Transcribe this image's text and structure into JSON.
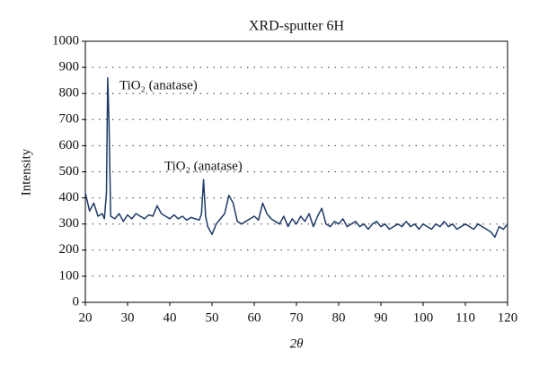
{
  "chart_data": {
    "type": "line",
    "title": "XRD-sputter 6H",
    "x_label": "2θ",
    "y_label": "Intensity",
    "annotations": [
      "TiO₂ (anatase)",
      "TiO₂ (anatase)"
    ],
    "x": [
      20,
      21,
      22,
      23,
      24,
      24.5,
      25,
      25.3,
      25.6,
      26,
      27,
      28,
      29,
      30,
      31,
      32,
      33,
      34,
      35,
      36,
      37,
      38,
      39,
      40,
      41,
      42,
      43,
      44,
      45,
      46,
      47,
      47.5,
      48,
      48.5,
      49,
      50,
      51,
      52,
      53,
      54,
      55,
      56,
      57,
      58,
      59,
      60,
      61,
      62,
      63,
      64,
      65,
      66,
      67,
      68,
      69,
      70,
      71,
      72,
      73,
      74,
      75,
      76,
      77,
      78,
      79,
      80,
      81,
      82,
      83,
      84,
      85,
      86,
      87,
      88,
      89,
      90,
      91,
      92,
      93,
      94,
      95,
      96,
      97,
      98,
      99,
      100,
      101,
      102,
      103,
      104,
      105,
      106,
      107,
      108,
      109,
      110,
      111,
      112,
      113,
      114,
      115,
      116,
      117,
      118,
      119,
      120
    ],
    "series": [
      {
        "name": "XRD-sputter 6H",
        "color": "#1f3a68",
        "values": [
          420,
          350,
          380,
          330,
          340,
          320,
          420,
          860,
          700,
          330,
          320,
          340,
          310,
          335,
          320,
          340,
          330,
          320,
          335,
          330,
          370,
          340,
          330,
          320,
          335,
          320,
          330,
          315,
          325,
          320,
          315,
          340,
          470,
          330,
          290,
          260,
          300,
          320,
          340,
          410,
          380,
          310,
          300,
          310,
          320,
          330,
          315,
          380,
          340,
          320,
          310,
          300,
          330,
          290,
          320,
          300,
          330,
          310,
          340,
          290,
          330,
          360,
          300,
          290,
          310,
          300,
          320,
          290,
          300,
          310,
          290,
          300,
          280,
          300,
          310,
          290,
          300,
          280,
          290,
          300,
          290,
          310,
          290,
          300,
          280,
          300,
          290,
          280,
          300,
          290,
          310,
          290,
          300,
          280,
          290,
          300,
          290,
          280,
          300,
          290,
          280,
          270,
          250,
          290,
          280,
          300
        ]
      }
    ],
    "xlim": [
      20,
      120
    ],
    "ylim": [
      0,
      1000
    ],
    "xticks": [
      20,
      30,
      40,
      50,
      60,
      70,
      80,
      90,
      100,
      110,
      120
    ],
    "yticks": [
      0,
      100,
      200,
      300,
      400,
      500,
      600,
      700,
      800,
      900,
      1000
    ],
    "grid": true
  }
}
